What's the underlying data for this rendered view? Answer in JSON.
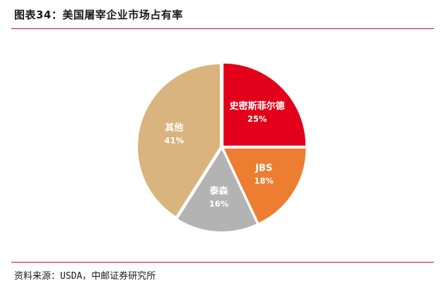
{
  "header": {
    "title": "图表34：美国屠宰企业市场占有率"
  },
  "footer": {
    "source": "资料来源：USDA，中邮证券研究所"
  },
  "colors": {
    "rule": "#c8102e",
    "slices": [
      "#e2001a",
      "#ed7d31",
      "#b3b3b3",
      "#d9b47e"
    ]
  },
  "chart_data": {
    "type": "pie",
    "title": "美国屠宰企业市场占有率",
    "start_angle_deg": 0,
    "direction": "clockwise",
    "slices": [
      {
        "name": "史密斯菲尔德",
        "value": 25,
        "label": "25%"
      },
      {
        "name": "JBS",
        "value": 18,
        "label": "18%"
      },
      {
        "name": "泰森",
        "value": 16,
        "label": "16%"
      },
      {
        "name": "其他",
        "value": 41,
        "label": "41%"
      }
    ]
  }
}
